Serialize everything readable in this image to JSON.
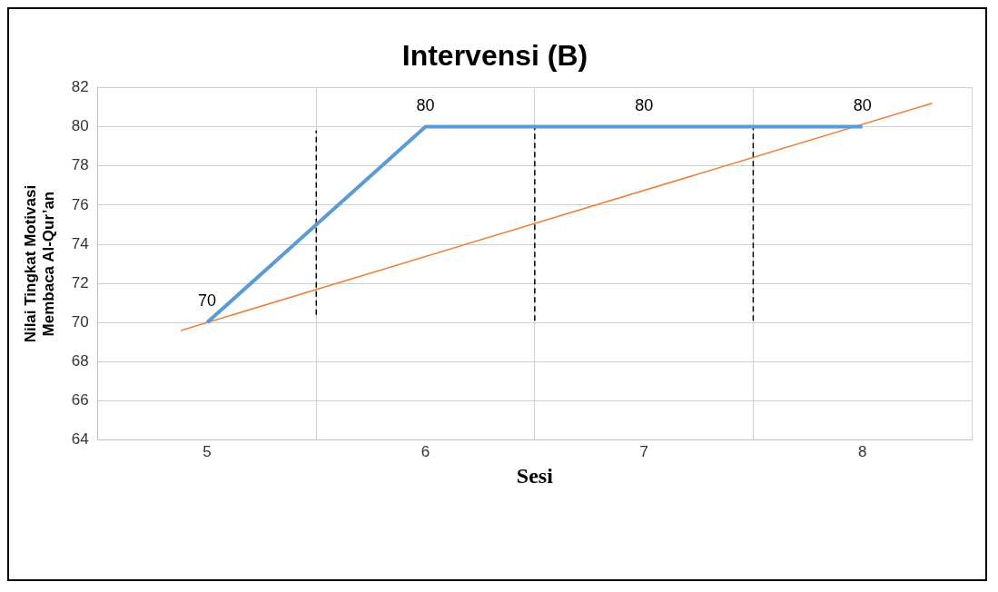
{
  "chart_data": {
    "type": "line",
    "title": "Intervensi (B)",
    "xlabel": "Sesi",
    "ylabel": "Nilai Tingkat Motivasi\nMembaca Al-Qur’an",
    "x": [
      5,
      6,
      7,
      8
    ],
    "series": [
      {
        "color": "#5b9bd5",
        "values": [
          70,
          80,
          80,
          80
        ],
        "value_labels": [
          "70",
          "80",
          "80",
          "80"
        ]
      },
      {
        "color": "#ed7d31",
        "x": [
          4.88,
          8.32
        ],
        "values": [
          69.6,
          81.2
        ]
      },
      {
        "color": "#000000",
        "x": [
          5.5,
          5.5
        ],
        "values": [
          70.4,
          79.8
        ],
        "line_style": "dashed"
      },
      {
        "color": "#000000",
        "x": [
          6.5,
          6.5
        ],
        "values": [
          70.1,
          80
        ],
        "line_style": "dashed"
      },
      {
        "color": "#000000",
        "x": [
          7.5,
          7.5
        ],
        "values": [
          70.1,
          80
        ],
        "line_style": "dashed"
      }
    ],
    "xlim": [
      4.5,
      8.5
    ],
    "xticks": [
      {
        "value": 4.5,
        "label": null
      },
      5,
      {
        "value": 5.5,
        "label": null
      },
      6,
      {
        "value": 6.5,
        "label": null
      },
      7,
      {
        "value": 7.5,
        "label": null
      },
      8,
      {
        "value": 8.5,
        "label": null
      }
    ],
    "ylim": [
      64,
      82
    ],
    "yticks": [
      64,
      66,
      68,
      70,
      72,
      74,
      76,
      78,
      80,
      82
    ],
    "grid": true,
    "legend": false,
    "marker": "none",
    "line_style": "solid"
  }
}
